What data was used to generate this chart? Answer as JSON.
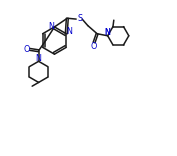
{
  "bg_color": "#ffffff",
  "bond_color": "#1a1a1a",
  "hetero_color": "#0000cc",
  "figsize": [
    1.77,
    1.56
  ],
  "dpi": 100,
  "xlim": [
    0,
    10
  ],
  "ylim": [
    0,
    9
  ]
}
